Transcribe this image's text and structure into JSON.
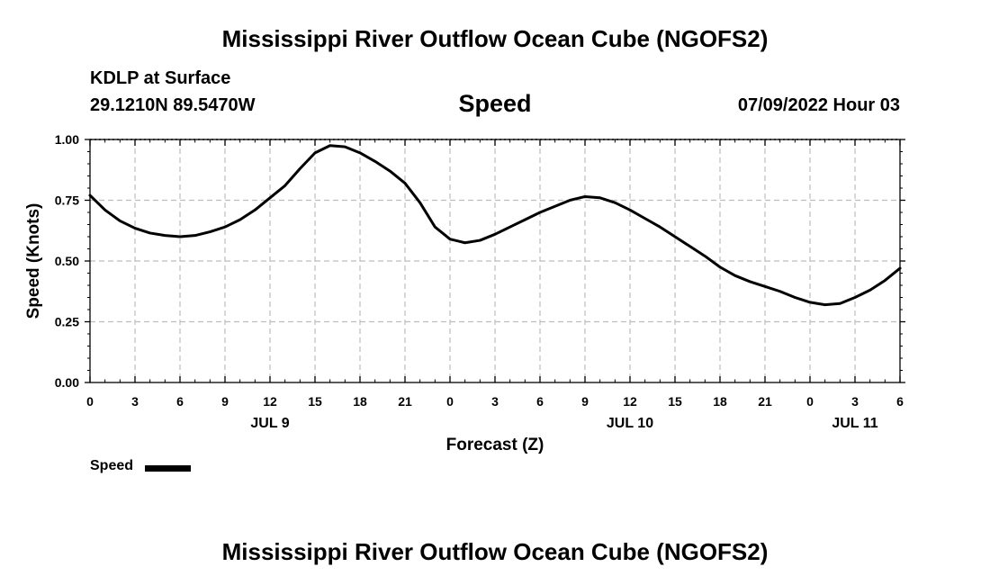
{
  "header": {
    "title": "Mississippi River Outflow Ocean Cube (NGOFS2)",
    "station": "KDLP at Surface",
    "coordinates": "29.1210N  89.5470W",
    "datetime": "07/09/2022 Hour 03"
  },
  "footer": {
    "title": "Mississippi River Outflow Ocean Cube (NGOFS2)"
  },
  "colors": {
    "line": "#000000",
    "grid": "#bdbdbd",
    "background": "#ffffff"
  },
  "chart_data": {
    "type": "line",
    "title": "Speed",
    "xlabel": "Forecast (Z)",
    "ylabel": "Speed (Knots)",
    "xlim": [
      0,
      54
    ],
    "ylim": [
      0,
      1
    ],
    "grid": true,
    "legend_placement": "bottom-left",
    "x_tick_values": [
      0,
      3,
      6,
      9,
      12,
      15,
      18,
      21,
      24,
      27,
      30,
      33,
      36,
      39,
      42,
      45,
      48,
      51,
      54
    ],
    "x_tick_labels": [
      "0",
      "3",
      "6",
      "9",
      "12",
      "15",
      "18",
      "21",
      "0",
      "3",
      "6",
      "9",
      "12",
      "15",
      "18",
      "21",
      "0",
      "3",
      "6"
    ],
    "y_tick_values": [
      0,
      0.25,
      0.5,
      0.75,
      1.0
    ],
    "y_tick_labels": [
      "0.00",
      "0.25",
      "0.50",
      "0.75",
      "1.00"
    ],
    "date_labels": [
      {
        "x": 12,
        "label": "JUL 9"
      },
      {
        "x": 36,
        "label": "JUL 10"
      },
      {
        "x": 51,
        "label": "JUL 11"
      }
    ],
    "series": [
      {
        "name": "Speed",
        "x": [
          0,
          1,
          2,
          3,
          4,
          5,
          6,
          7,
          8,
          9,
          10,
          11,
          12,
          13,
          14,
          15,
          16,
          17,
          18,
          19,
          20,
          21,
          22,
          23,
          24,
          25,
          26,
          27,
          28,
          29,
          30,
          31,
          32,
          33,
          34,
          35,
          36,
          37,
          38,
          39,
          40,
          41,
          42,
          43,
          44,
          45,
          46,
          47,
          48,
          49,
          50,
          51,
          52,
          53,
          54
        ],
        "values": [
          0.77,
          0.71,
          0.665,
          0.635,
          0.615,
          0.605,
          0.6,
          0.605,
          0.62,
          0.64,
          0.67,
          0.71,
          0.76,
          0.81,
          0.88,
          0.945,
          0.975,
          0.97,
          0.945,
          0.91,
          0.87,
          0.82,
          0.74,
          0.64,
          0.59,
          0.575,
          0.585,
          0.61,
          0.64,
          0.67,
          0.7,
          0.725,
          0.75,
          0.765,
          0.76,
          0.74,
          0.71,
          0.675,
          0.64,
          0.6,
          0.56,
          0.52,
          0.475,
          0.44,
          0.415,
          0.395,
          0.375,
          0.35,
          0.33,
          0.32,
          0.325,
          0.35,
          0.38,
          0.42,
          0.47
        ]
      }
    ]
  }
}
